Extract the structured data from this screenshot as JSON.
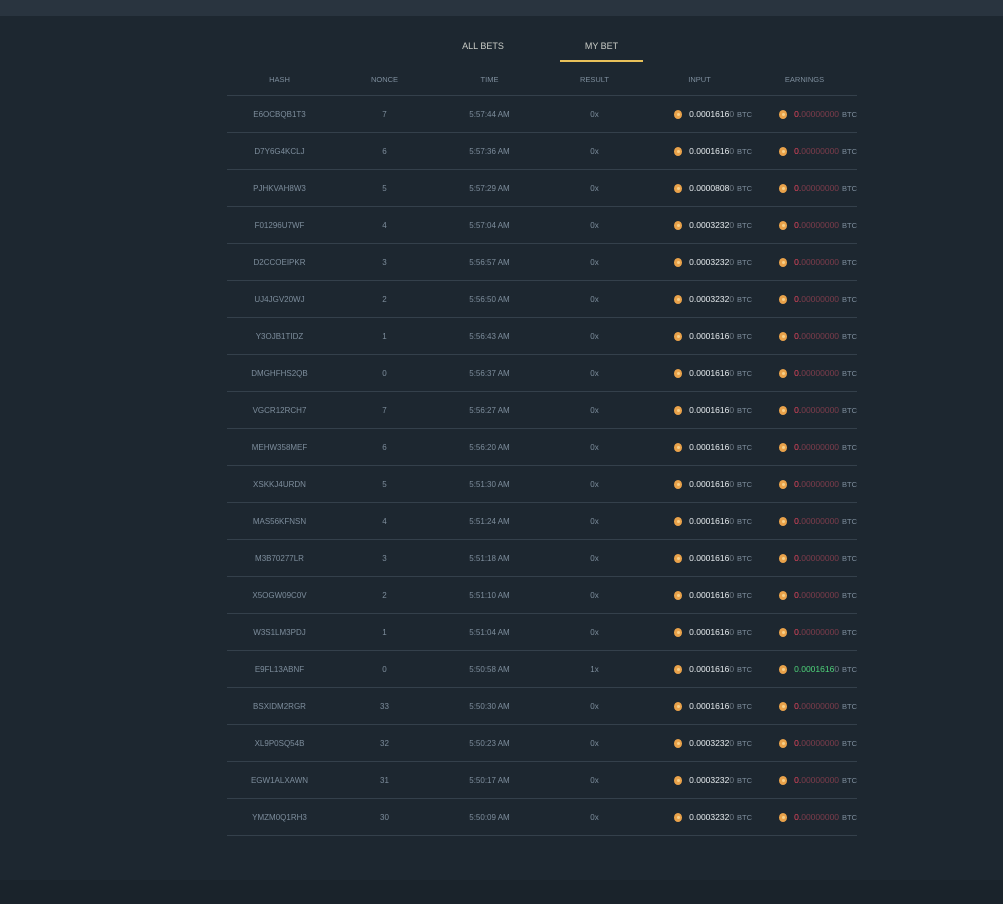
{
  "tabs": [
    {
      "label": "ALL BETS",
      "active": false
    },
    {
      "label": "MY BET",
      "active": true
    }
  ],
  "accent": "#e8c15a",
  "columns": [
    "HASH",
    "NONCE",
    "TIME",
    "RESULT",
    "INPUT",
    "EARNINGS"
  ],
  "currency": "BTC",
  "coin_icon": "bitcoin-coin-icon",
  "rows": [
    {
      "hash": "E6OCBQB1T3",
      "nonce": "7",
      "time": "5:57:44 AM",
      "result": "0x",
      "input": "0.0001616",
      "input_tail": "0",
      "earn": "0.",
      "earn_tail": "00000000",
      "win": false
    },
    {
      "hash": "D7Y6G4KCLJ",
      "nonce": "6",
      "time": "5:57:36 AM",
      "result": "0x",
      "input": "0.0001616",
      "input_tail": "0",
      "earn": "0.",
      "earn_tail": "00000000",
      "win": false
    },
    {
      "hash": "PJHKVAH8W3",
      "nonce": "5",
      "time": "5:57:29 AM",
      "result": "0x",
      "input": "0.0000808",
      "input_tail": "0",
      "earn": "0.",
      "earn_tail": "00000000",
      "win": false
    },
    {
      "hash": "F01296U7WF",
      "nonce": "4",
      "time": "5:57:04 AM",
      "result": "0x",
      "input": "0.0003232",
      "input_tail": "0",
      "earn": "0.",
      "earn_tail": "00000000",
      "win": false
    },
    {
      "hash": "D2CCOEIPKR",
      "nonce": "3",
      "time": "5:56:57 AM",
      "result": "0x",
      "input": "0.0003232",
      "input_tail": "0",
      "earn": "0.",
      "earn_tail": "00000000",
      "win": false
    },
    {
      "hash": "UJ4JGV20WJ",
      "nonce": "2",
      "time": "5:56:50 AM",
      "result": "0x",
      "input": "0.0003232",
      "input_tail": "0",
      "earn": "0.",
      "earn_tail": "00000000",
      "win": false
    },
    {
      "hash": "Y3OJB1TIDZ",
      "nonce": "1",
      "time": "5:56:43 AM",
      "result": "0x",
      "input": "0.0001616",
      "input_tail": "0",
      "earn": "0.",
      "earn_tail": "00000000",
      "win": false
    },
    {
      "hash": "DMGHFHS2QB",
      "nonce": "0",
      "time": "5:56:37 AM",
      "result": "0x",
      "input": "0.0001616",
      "input_tail": "0",
      "earn": "0.",
      "earn_tail": "00000000",
      "win": false
    },
    {
      "hash": "VGCR12RCH7",
      "nonce": "7",
      "time": "5:56:27 AM",
      "result": "0x",
      "input": "0.0001616",
      "input_tail": "0",
      "earn": "0.",
      "earn_tail": "00000000",
      "win": false
    },
    {
      "hash": "MEHW358MEF",
      "nonce": "6",
      "time": "5:56:20 AM",
      "result": "0x",
      "input": "0.0001616",
      "input_tail": "0",
      "earn": "0.",
      "earn_tail": "00000000",
      "win": false
    },
    {
      "hash": "XSKKJ4URDN",
      "nonce": "5",
      "time": "5:51:30 AM",
      "result": "0x",
      "input": "0.0001616",
      "input_tail": "0",
      "earn": "0.",
      "earn_tail": "00000000",
      "win": false
    },
    {
      "hash": "MAS56KFNSN",
      "nonce": "4",
      "time": "5:51:24 AM",
      "result": "0x",
      "input": "0.0001616",
      "input_tail": "0",
      "earn": "0.",
      "earn_tail": "00000000",
      "win": false
    },
    {
      "hash": "M3B70277LR",
      "nonce": "3",
      "time": "5:51:18 AM",
      "result": "0x",
      "input": "0.0001616",
      "input_tail": "0",
      "earn": "0.",
      "earn_tail": "00000000",
      "win": false
    },
    {
      "hash": "X5OGW09C0V",
      "nonce": "2",
      "time": "5:51:10 AM",
      "result": "0x",
      "input": "0.0001616",
      "input_tail": "0",
      "earn": "0.",
      "earn_tail": "00000000",
      "win": false
    },
    {
      "hash": "W3S1LM3PDJ",
      "nonce": "1",
      "time": "5:51:04 AM",
      "result": "0x",
      "input": "0.0001616",
      "input_tail": "0",
      "earn": "0.",
      "earn_tail": "00000000",
      "win": false
    },
    {
      "hash": "E9FL13ABNF",
      "nonce": "0",
      "time": "5:50:58 AM",
      "result": "1x",
      "input": "0.0001616",
      "input_tail": "0",
      "earn": "0.0001616",
      "earn_tail": "0",
      "win": true
    },
    {
      "hash": "BSXIDM2RGR",
      "nonce": "33",
      "time": "5:50:30 AM",
      "result": "0x",
      "input": "0.0001616",
      "input_tail": "0",
      "earn": "0.",
      "earn_tail": "00000000",
      "win": false
    },
    {
      "hash": "XL9P0SQ54B",
      "nonce": "32",
      "time": "5:50:23 AM",
      "result": "0x",
      "input": "0.0003232",
      "input_tail": "0",
      "earn": "0.",
      "earn_tail": "00000000",
      "win": false
    },
    {
      "hash": "EGW1ALXAWN",
      "nonce": "31",
      "time": "5:50:17 AM",
      "result": "0x",
      "input": "0.0003232",
      "input_tail": "0",
      "earn": "0.",
      "earn_tail": "00000000",
      "win": false
    },
    {
      "hash": "YMZM0Q1RH3",
      "nonce": "30",
      "time": "5:50:09 AM",
      "result": "0x",
      "input": "0.0003232",
      "input_tail": "0",
      "earn": "0.",
      "earn_tail": "00000000",
      "win": false
    }
  ]
}
